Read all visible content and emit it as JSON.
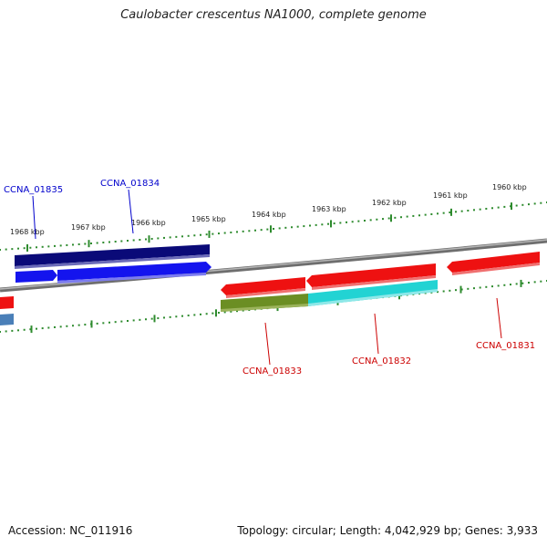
{
  "title": "Caulobacter crescentus NA1000, complete genome",
  "footer": {
    "accession": "Accession: NC_011916",
    "summary": "Topology: circular; Length: 4,042,929 bp; Genes: 3,933"
  },
  "scale_labels": [
    "1968 kbp",
    "1967 kbp",
    "1966 kbp",
    "1965 kbp",
    "1964 kbp",
    "1963 kbp",
    "1962 kbp",
    "1961 kbp",
    "1960 kbp"
  ],
  "gene_labels": [
    {
      "text": "CCNA_01835",
      "color": "#0000cc"
    },
    {
      "text": "CCNA_01834",
      "color": "#0000cc"
    },
    {
      "text": "CCNA_01833",
      "color": "#cc0000"
    },
    {
      "text": "CCNA_01832",
      "color": "#cc0000"
    },
    {
      "text": "CCNA_01831",
      "color": "#cc0000"
    }
  ],
  "colors": {
    "tick": "#2e8b2e",
    "backbone": "#7a7a7a",
    "navy": "#0a0a78",
    "blue": "#1414ee",
    "red": "#ee1111",
    "olive": "#6b8e23",
    "cyan": "#22d3d3",
    "steel": "#4a7fb8"
  }
}
